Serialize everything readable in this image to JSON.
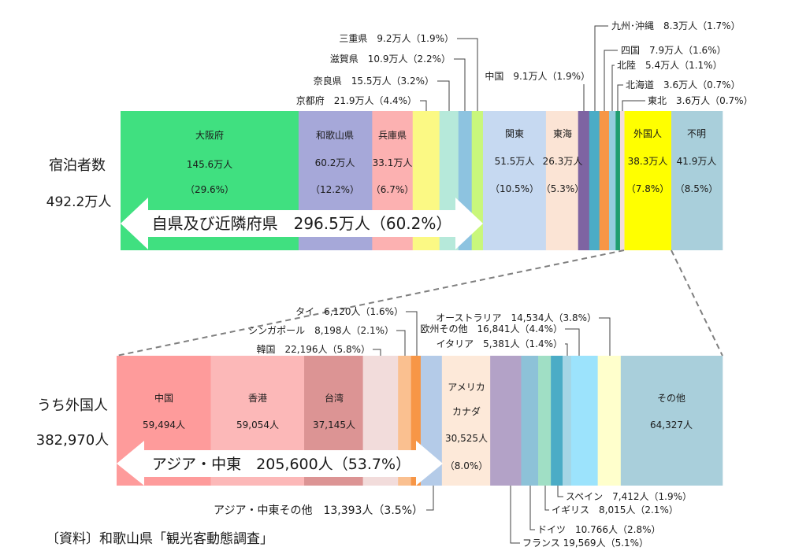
{
  "source": "〔資料〕和歌山県「観光客動態調査」",
  "chart_data": [
    {
      "type": "bar",
      "stacked": true,
      "horizontal": true,
      "row_label": "宿泊者数",
      "total_label": "492.2万人",
      "segments": [
        {
          "name": "大阪府",
          "value": 145.6,
          "value_label": "145.6万人",
          "pct_label": "（29.6%）",
          "color": "#40e080"
        },
        {
          "name": "和歌山県",
          "value": 60.2,
          "value_label": "60.2万人",
          "pct_label": "（12.2%）",
          "color": "#a6a8d9"
        },
        {
          "name": "兵庫県",
          "value": 33.1,
          "value_label": "33.1万人",
          "pct_label": "（6.7%）",
          "color": "#fcb1b1"
        },
        {
          "value": 21.9,
          "callout": "京都府　21.9万人（4.4%）",
          "color": "#fbf984"
        },
        {
          "value": 15.5,
          "callout": "奈良県　15.5万人（3.2%）",
          "color": "#b6e9da"
        },
        {
          "value": 10.9,
          "callout": "滋賀県　10.9万人（2.2%）",
          "color": "#8dc3e0"
        },
        {
          "value": 9.2,
          "callout": "三重県　9.2万人（1.9%）",
          "color": "#c9f77b"
        },
        {
          "name": "関東",
          "value": 51.5,
          "value_label": "51.5万人",
          "pct_label": "（10.5%）",
          "color": "#c6d9f1"
        },
        {
          "name": "東海",
          "value": 26.3,
          "value_label": "26.3万人",
          "pct_label": "（5.3%）",
          "color": "#fbe4d5"
        },
        {
          "value": 9.1,
          "callout": "中国　9.1万人（1.9%）",
          "color": "#7e64a2"
        },
        {
          "value": 8.3,
          "callout": "九州･沖縄　8.3万人（1.7%）",
          "color": "#4bacc6"
        },
        {
          "value": 7.9,
          "callout": "四国　7.9万人（1.6%）",
          "color": "#f79646"
        },
        {
          "value": 5.4,
          "callout": "北陸　5.4万人（1.1%）",
          "color": "#93cddd"
        },
        {
          "value": 3.6,
          "callout": "北海道　3.6万人（0.7%）",
          "color": "#1f9e6e"
        },
        {
          "value": 3.6,
          "callout": "東北　3.6万人（0.7%）",
          "color": "#f2dcdb"
        },
        {
          "name": "外国人",
          "value": 38.3,
          "value_label": "38.3万人",
          "pct_label": "（7.8%）",
          "color": "#ffff00"
        },
        {
          "name": "不明",
          "value": 41.9,
          "value_label": "41.9万人",
          "pct_label": "（8.5%）",
          "color": "#a9cfdb"
        }
      ],
      "group_arrow": "自県及び近隣府県　296.5万人（60.2%）"
    },
    {
      "type": "bar",
      "stacked": true,
      "horizontal": true,
      "row_label": "うち外国人",
      "total_label": "382,970人",
      "segments": [
        {
          "name": "中国",
          "value": 59494,
          "value_label": "59,494人",
          "color": "#fe9b9b"
        },
        {
          "name": "香港",
          "value": 59054,
          "value_label": "59,054人",
          "color": "#fcb8b8"
        },
        {
          "name": "台湾",
          "value": 37145,
          "value_label": "37,145人",
          "color": "#dc9494"
        },
        {
          "value": 22196,
          "callout": "韓国　22,196人（5.8%）",
          "color": "#f2dcdb"
        },
        {
          "value": 8198,
          "callout": "シンガポール　8,198人（2.1%）",
          "color": "#fac090"
        },
        {
          "value": 6120,
          "callout": "タイ　6,120人（1.6%）",
          "color": "#f79646"
        },
        {
          "value": 13393,
          "callout": "アジア・中東その他　13,393人（3.5%）",
          "color": "#b4cbe8"
        },
        {
          "name_lines": [
            "アメリカ",
            "カナダ"
          ],
          "value": 30525,
          "value_label": "30,525人",
          "pct_label": "（8.0%）",
          "color": "#fde9d9"
        },
        {
          "value": 19569,
          "callout": "フランス 19,569人（5.1%）",
          "color": "#b3a2c7"
        },
        {
          "value": 10766,
          "callout": "ドイツ　10.766人（2.8%）",
          "color": "#8dc2d8"
        },
        {
          "value": 8015,
          "callout": "イギリス　8,015人（2.1%）",
          "color": "#a0dfc5"
        },
        {
          "value": 7412,
          "callout": "スペイン　7,412人（1.9%）",
          "color": "#4bacc6"
        },
        {
          "value": 5381,
          "callout": "イタリア　5,381人（1.4%）",
          "color": "#a5d5e5"
        },
        {
          "value": 16841,
          "callout": "欧州その他　16,841人（4.4%）",
          "color": "#9ce3fc"
        },
        {
          "value": 14534,
          "callout": "オーストラリア　14,534人（3.8%）",
          "color": "#ffffcc"
        },
        {
          "name": "その他",
          "value": 64327,
          "value_label": "64,327人",
          "color": "#a9cfdb"
        }
      ],
      "group_arrow": "アジア・中東　205,600人（53.7%）"
    }
  ]
}
